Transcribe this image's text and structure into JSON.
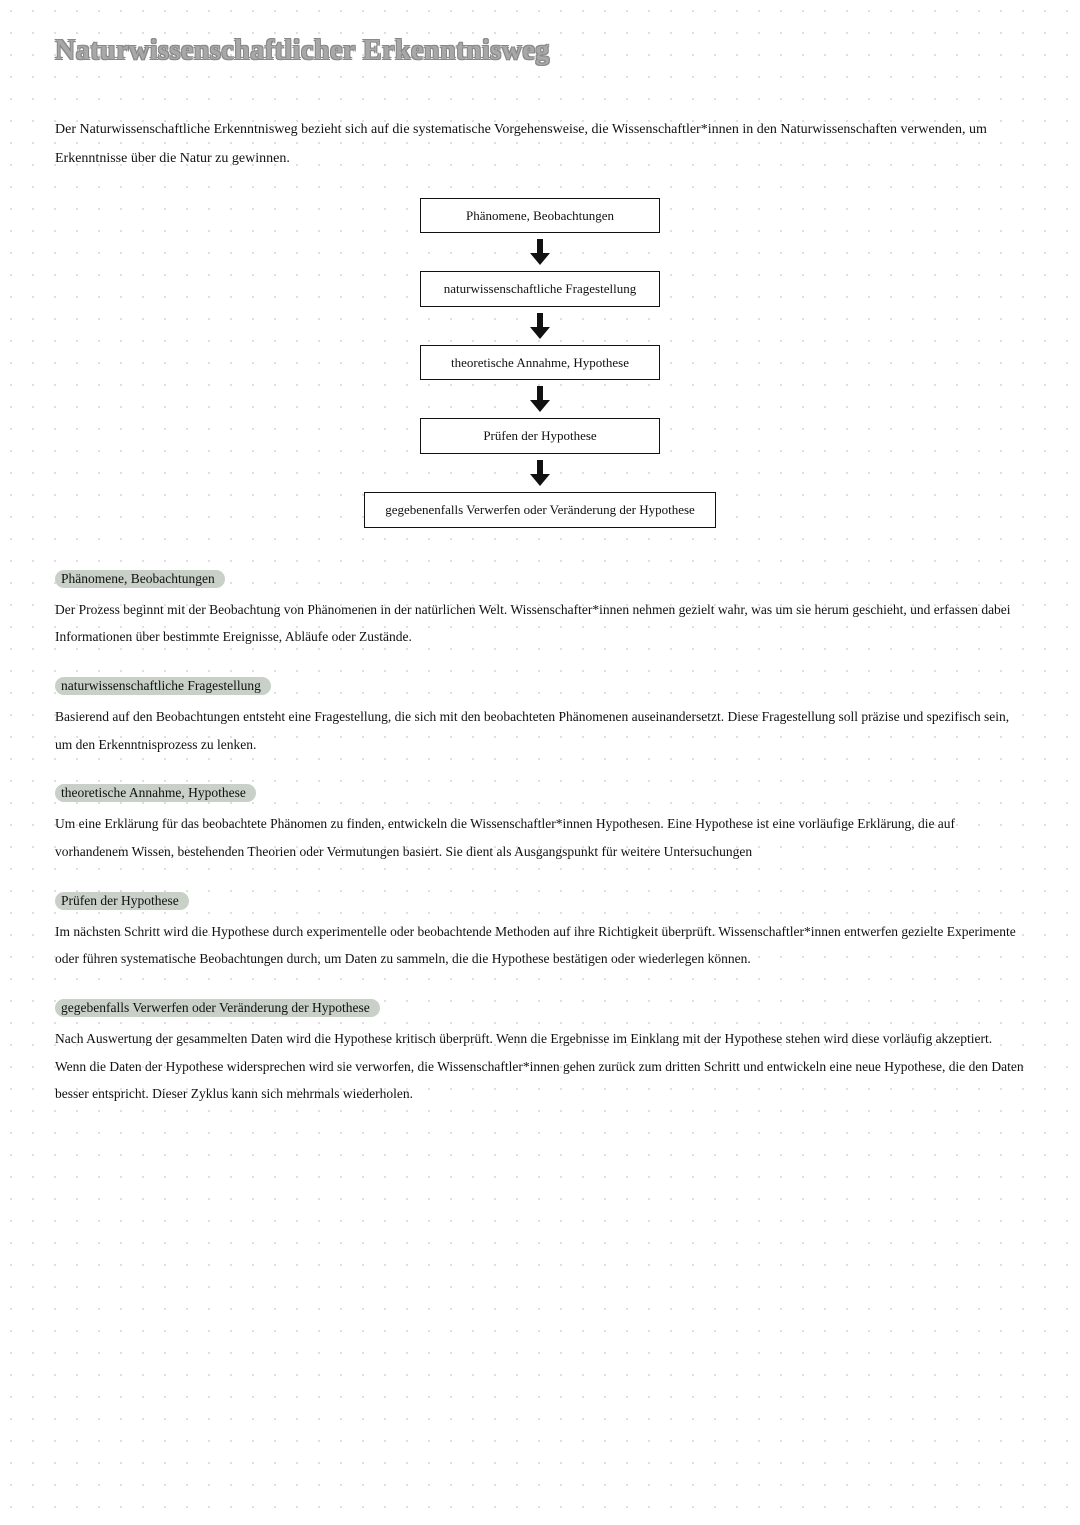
{
  "title": "Naturwissenschaftlicher Erkenntnisweg",
  "intro": "Der Naturwissenschaftliche Erkenntnisweg bezieht sich auf die systematische Vorgehensweise, die Wissenschaftler*innen in den Naturwissenschaften verwenden, um Erkenntnisse über die Natur zu gewinnen.",
  "flowchart": {
    "type": "flowchart",
    "node_border_color": "#111111",
    "node_bg_color": "#ffffff",
    "arrow_color": "#111111",
    "nodes": [
      "Phänomene, Beobachtungen",
      "naturwissenschaftliche Fragestellung",
      "theoretische Annahme, Hypothese",
      "Prüfen der Hypothese",
      "gegebenenfalls Verwerfen oder Veränderung der Hypothese"
    ]
  },
  "sections": [
    {
      "heading": "Phänomene, Beobachtungen",
      "body": "Der Prozess beginnt mit der Beobachtung von Phänomenen in der natürlichen Welt. Wissenschafter*innen nehmen gezielt wahr, was um sie herum geschieht, und erfassen dabei Informationen über bestimmte Ereignisse, Abläufe oder Zustände."
    },
    {
      "heading": "naturwissenschaftliche Fragestellung",
      "body": "Basierend auf den Beobachtungen entsteht eine Fragestellung, die sich mit den beobachteten Phänomenen auseinandersetzt. Diese Fragestellung soll präzise und spezifisch sein, um den Erkenntnisprozess zu lenken."
    },
    {
      "heading": "theoretische Annahme, Hypothese",
      "body": "Um eine Erklärung für das beobachtete Phänomen zu finden, entwickeln die Wissenschaftler*innen Hypothesen. Eine Hypothese ist eine vorläufige Erklärung, die auf vorhandenem Wissen, bestehenden Theorien oder Vermutungen basiert. Sie dient als Ausgangspunkt für weitere Untersuchungen"
    },
    {
      "heading": "Prüfen der Hypothese",
      "body": "Im nächsten Schritt wird die Hypothese durch experimentelle oder beobachtende Methoden auf ihre Richtigkeit überprüft. Wissenschaftler*innen entwerfen gezielte Experimente oder führen systematische Beobachtungen durch, um Daten zu sammeln, die die Hypothese bestätigen oder wiederlegen können."
    },
    {
      "heading": "gegebenfalls Verwerfen oder Veränderung der Hypothese",
      "body": "Nach Auswertung der gesammelten Daten wird die Hypothese kritisch überprüft. Wenn die Ergebnisse im Einklang mit der Hypothese stehen wird diese vorläufig akzeptiert. Wenn die Daten der Hypothese widersprechen wird sie verworfen, die Wissenschaftler*innen gehen zurück zum dritten Schritt und entwickeln eine neue Hypothese, die den Daten besser entspricht. Dieser Zyklus kann sich mehrmals wiederholen."
    }
  ],
  "colors": {
    "dot_grid": "#d4d4d4",
    "background": "#ffffff",
    "text": "#111111",
    "title": "#a8a8a8",
    "highlight_bg": "#c8d0c8"
  }
}
